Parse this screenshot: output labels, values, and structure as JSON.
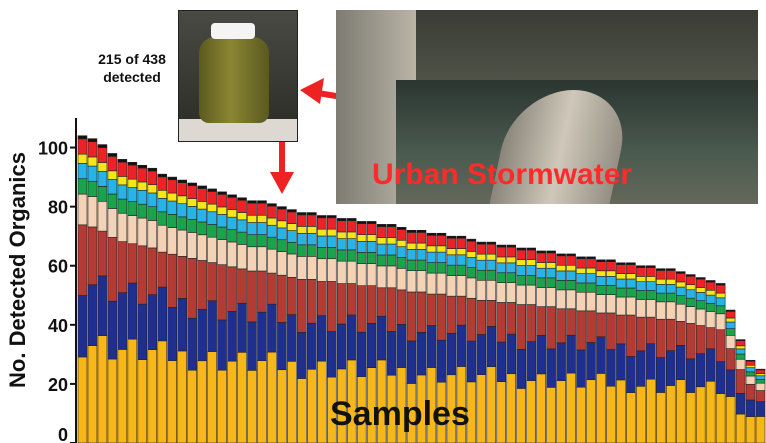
{
  "annotations": {
    "jar_caption_line1": "215 of 438",
    "jar_caption_line2": "detected",
    "stormwater_label": "Urban Stormwater"
  },
  "colors": {
    "arrow": "#ee2222",
    "stormwater_label": "#ff2a2a",
    "segments": [
      "#f7b718",
      "#1f2f8f",
      "#b43a34",
      "#f4d2b6",
      "#19a34a",
      "#27b3e6",
      "#f5e61a",
      "#ec2227",
      "#111111"
    ]
  },
  "chart_data": {
    "type": "bar",
    "stacked": true,
    "xlabel": "Samples",
    "ylabel": "No. Detected Organics",
    "ylim": [
      0,
      110
    ],
    "yticks": [
      0,
      20,
      40,
      60,
      80,
      100
    ],
    "grid": false,
    "legend": "none",
    "totals": [
      104,
      103,
      101,
      98,
      96,
      95,
      94,
      93,
      91,
      90,
      89,
      88,
      87,
      86,
      85,
      84,
      83,
      82,
      82,
      81,
      80,
      79,
      78,
      78,
      77,
      77,
      76,
      76,
      75,
      75,
      74,
      74,
      73,
      72,
      72,
      71,
      71,
      70,
      70,
      69,
      68,
      68,
      67,
      67,
      66,
      66,
      65,
      65,
      64,
      64,
      63,
      63,
      62,
      62,
      61,
      61,
      60,
      60,
      59,
      59,
      58,
      57,
      56,
      55,
      54,
      45,
      35,
      28,
      25
    ]
  }
}
